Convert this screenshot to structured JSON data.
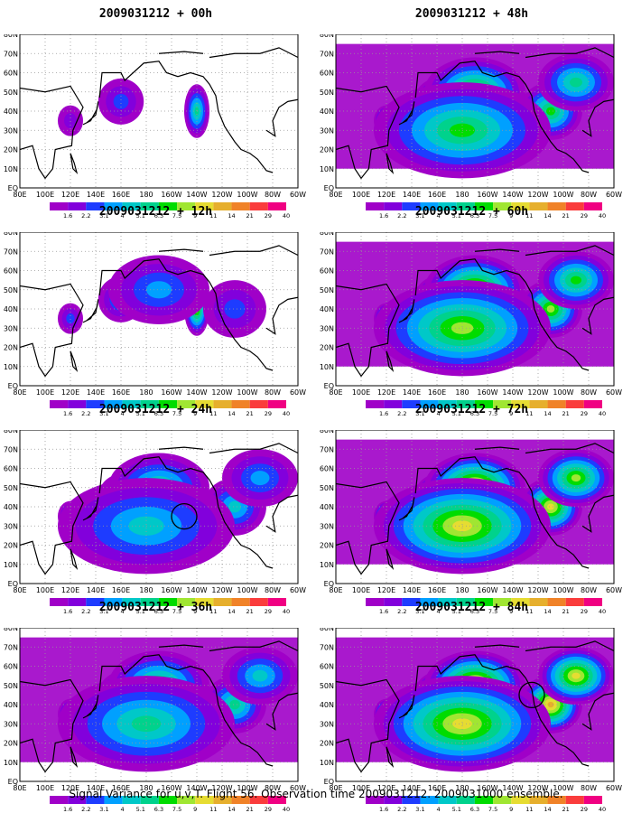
{
  "chart_data": [
    {
      "type": "heatmap",
      "title": "2009031212 + 00h",
      "intensity": 0.05,
      "circle": null
    },
    {
      "type": "heatmap",
      "title": "2009031212 + 48h",
      "intensity": 0.55,
      "circle": null
    },
    {
      "type": "heatmap",
      "title": "2009031212 + 12h",
      "intensity": 0.2,
      "circle": null
    },
    {
      "type": "heatmap",
      "title": "2009031212 + 60h",
      "intensity": 0.65,
      "circle": null
    },
    {
      "type": "heatmap",
      "title": "2009031212 + 24h",
      "intensity": 0.35,
      "circle": "150W 35N"
    },
    {
      "type": "heatmap",
      "title": "2009031212 + 72h",
      "intensity": 0.75,
      "circle": null
    },
    {
      "type": "heatmap",
      "title": "2009031212 + 36h",
      "intensity": 0.45,
      "circle": null
    },
    {
      "type": "heatmap",
      "title": "2009031212 + 84h",
      "intensity": 0.85,
      "circle": "125W 45N"
    }
  ],
  "x_ticks": [
    "80E",
    "100E",
    "120E",
    "140E",
    "160E",
    "180",
    "160W",
    "140W",
    "120W",
    "100W",
    "80W",
    "60W"
  ],
  "y_ticks": [
    "EQ",
    "10N",
    "20N",
    "30N",
    "40N",
    "50N",
    "60N",
    "70N",
    "80N"
  ],
  "colorbar": {
    "labels": [
      "1.6",
      "2.2",
      "3.1",
      "4",
      "5.1",
      "6.3",
      "7.5",
      "9",
      "11",
      "14",
      "21",
      "29",
      "40"
    ],
    "colors": [
      "#a000c8",
      "#8200dc",
      "#1e3cff",
      "#00a0ff",
      "#00c8c8",
      "#00d28c",
      "#00dc00",
      "#a0e632",
      "#e6dc32",
      "#e6af2d",
      "#f08228",
      "#fa3c3c",
      "#f00082"
    ]
  },
  "caption": "Signal Variance for u,v,T. Flight 56. Observation time 2009031212. 2009031000 ensemble."
}
